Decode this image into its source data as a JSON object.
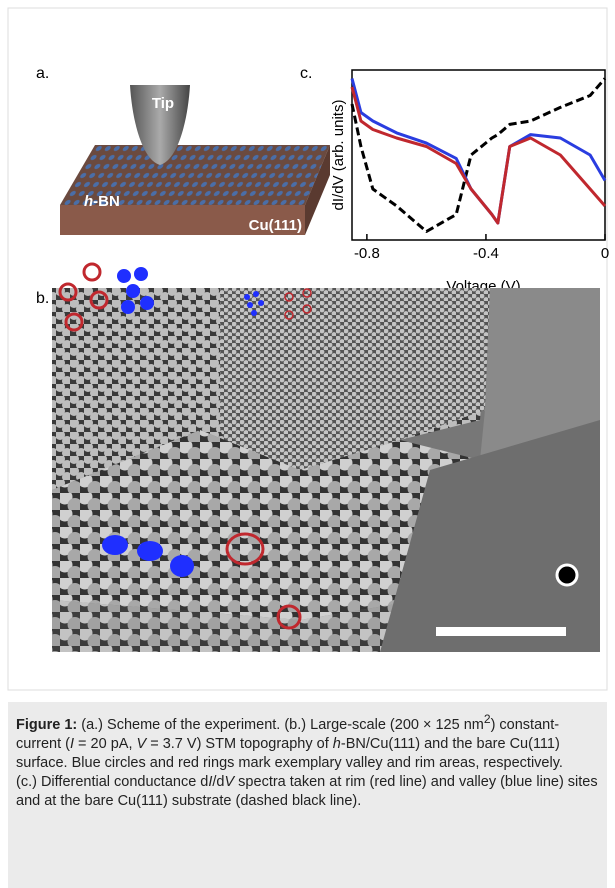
{
  "panel_a": {
    "label": "a.",
    "tip": "Tip",
    "hbn_italic": "h",
    "hbn_rest": "-BN",
    "substrate": "Cu(111)"
  },
  "panel_b": {
    "label": "b."
  },
  "panel_c": {
    "label": "c."
  },
  "chart_data": {
    "type": "line",
    "x_label": "Voltage (V)",
    "y_label": "dI/dV (arb. units)",
    "x": [
      -0.85,
      -0.82,
      -0.78,
      -0.7,
      -0.6,
      -0.5,
      -0.45,
      -0.38,
      -0.36,
      -0.32,
      -0.25,
      -0.15,
      -0.05,
      0
    ],
    "series": [
      {
        "color": "#000000",
        "dashed": true,
        "values": [
          0.8,
          0.55,
          0.3,
          0.2,
          0.05,
          0.15,
          0.5,
          0.6,
          0.62,
          0.68,
          0.7,
          0.78,
          0.85,
          0.95
        ]
      },
      {
        "color": "#2a3de0",
        "dashed": false,
        "values": [
          0.95,
          0.75,
          0.7,
          0.63,
          0.57,
          0.48,
          0.3,
          0.15,
          0.1,
          0.55,
          0.62,
          0.6,
          0.5,
          0.35
        ]
      },
      {
        "color": "#c0282e",
        "dashed": false,
        "values": [
          0.9,
          0.7,
          0.65,
          0.6,
          0.55,
          0.45,
          0.3,
          0.15,
          0.1,
          0.55,
          0.6,
          0.5,
          0.3,
          0.2
        ]
      }
    ],
    "xlim": [
      -0.85,
      0
    ],
    "ylim": [
      0,
      1
    ],
    "xticks": [
      -0.8,
      -0.4,
      0
    ]
  },
  "caption": {
    "parts": [
      "Figure 1:",
      " (a.) Scheme of the experiment. (b.) Large-scale (200 × 125 nm",
      "2",
      ") constant-current (",
      "I",
      " = 20 pA, ",
      "V",
      " = 3.7 V) STM topography of ",
      "h",
      "-BN/Cu(111) and the bare Cu(111) surface. Blue circles and red rings mark exemplary valley and rim areas, respectively.",
      "(c.) Differential conductance d",
      "I",
      "/d",
      "V",
      " spectra taken at rim (red line) and valley (blue line) sites and at the bare Cu(111) substrate (dashed black line)."
    ]
  }
}
